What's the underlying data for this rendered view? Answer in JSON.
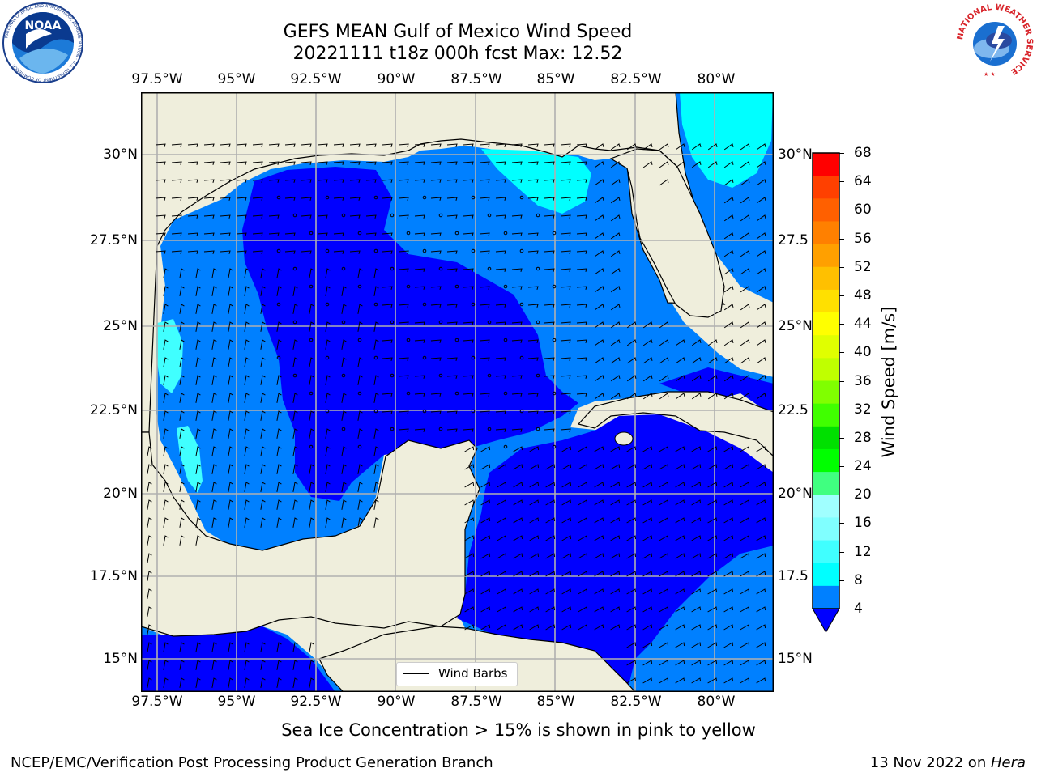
{
  "header": {
    "title_line1": "GEFS MEAN Gulf of Mexico Wind Speed",
    "title_line2": "20221111 t18z 000h fcst   Max: 12.52"
  },
  "logos": {
    "left": "NOAA",
    "left_ring_text": "NATIONAL OCEANIC AND ATMOSPHERIC ADMINISTRATION · U.S. DEPARTMENT OF COMMERCE",
    "right_ring_text": "NATIONAL WEATHER SERVICE"
  },
  "map": {
    "lon_labels": [
      "97.5°W",
      "95°W",
      "92.5°W",
      "90°W",
      "87.5°W",
      "85°W",
      "82.5°W",
      "80°W"
    ],
    "lat_labels_left": [
      "30°N",
      "27.5°N",
      "25°N",
      "22.5°N",
      "20°N",
      "17.5°N",
      "15°N"
    ],
    "lat_labels_right": [
      "30°N",
      "27.5",
      "25°N",
      "22.5",
      "20°N",
      "17.5",
      "15°N"
    ],
    "legend_label": "Wind Barbs",
    "land_color": "#efeedc",
    "grid_color": "#b0b0b0"
  },
  "colorbar": {
    "label": "Wind Speed [m/s]",
    "ticks": [
      "4",
      "8",
      "12",
      "16",
      "20",
      "24",
      "28",
      "32",
      "36",
      "40",
      "44",
      "48",
      "52",
      "56",
      "60",
      "64",
      "68"
    ],
    "under_color": "#0000ff",
    "colors": [
      "#0080ff",
      "#00ffff",
      "#40ffff",
      "#80ffff",
      "#a0ffff",
      "#40ff80",
      "#00ff00",
      "#00e000",
      "#40ff00",
      "#80ff00",
      "#c0ff00",
      "#e0ff00",
      "#ffff00",
      "#ffe000",
      "#ffc000",
      "#ffa000",
      "#ff8000",
      "#ff6000",
      "#ff4000",
      "#ff0000"
    ]
  },
  "caption": "Sea Ice Concentration > 15% is shown in pink to yellow",
  "footer": {
    "left": "NCEP/EMC/Verification Post Processing Product Generation Branch",
    "right_date": "13 Nov 2022 on ",
    "right_host": "Hera"
  }
}
